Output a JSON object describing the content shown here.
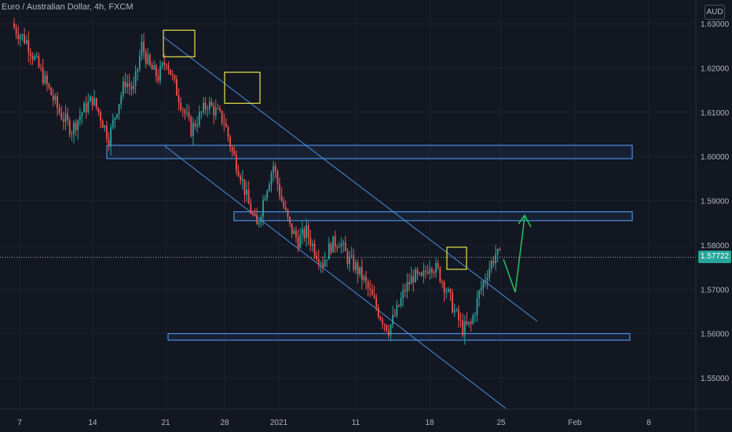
{
  "symbol_title": "Euro / Australian Dollar, 4h, FXCM",
  "currency_badge": "AUD",
  "last_price_label": "1.57722",
  "colors": {
    "background": "#131722",
    "up_candle": "#26a69a",
    "down_candle": "#ef5350",
    "channel_line": "#4a90e2",
    "zone_border": "#4a90e2",
    "highlight_box": "#e6e64a",
    "projection_arrow": "#22c55e",
    "axis_text": "#b2b5be",
    "price_line": "#9ca3af"
  },
  "chart_data": {
    "type": "candlestick",
    "title": "Euro / Australian Dollar, 4h, FXCM",
    "ylim": [
      1.545,
      1.632
    ],
    "y_ticks": [
      "1.63000",
      "1.62000",
      "1.61000",
      "1.60000",
      "1.59000",
      "1.58000",
      "1.57000",
      "1.56000",
      "1.55000"
    ],
    "x_ticks": [
      "7",
      "14",
      "21",
      "28",
      "2021",
      "11",
      "18",
      "25",
      "Feb",
      "8"
    ],
    "last_price": 1.57722,
    "close_path": [
      [
        0,
        1.629
      ],
      [
        6,
        1.626
      ],
      [
        12,
        1.62
      ],
      [
        18,
        1.614
      ],
      [
        22,
        1.61
      ],
      [
        28,
        1.606
      ],
      [
        33,
        1.61
      ],
      [
        38,
        1.613
      ],
      [
        42,
        1.609
      ],
      [
        46,
        1.604
      ],
      [
        50,
        1.611
      ],
      [
        54,
        1.617
      ],
      [
        58,
        1.615
      ],
      [
        62,
        1.625
      ],
      [
        66,
        1.62
      ],
      [
        70,
        1.618
      ],
      [
        74,
        1.622
      ],
      [
        78,
        1.616
      ],
      [
        82,
        1.611
      ],
      [
        86,
        1.606
      ],
      [
        90,
        1.609
      ],
      [
        94,
        1.612
      ],
      [
        98,
        1.61
      ],
      [
        102,
        1.608
      ],
      [
        106,
        1.601
      ],
      [
        110,
        1.596
      ],
      [
        114,
        1.589
      ],
      [
        118,
        1.584
      ],
      [
        122,
        1.592
      ],
      [
        126,
        1.598
      ],
      [
        130,
        1.59
      ],
      [
        134,
        1.584
      ],
      [
        138,
        1.581
      ],
      [
        142,
        1.583
      ],
      [
        146,
        1.579
      ],
      [
        150,
        1.576
      ],
      [
        154,
        1.58
      ],
      [
        158,
        1.581
      ],
      [
        162,
        1.577
      ],
      [
        166,
        1.575
      ],
      [
        170,
        1.572
      ],
      [
        174,
        1.568
      ],
      [
        178,
        1.564
      ],
      [
        182,
        1.561
      ],
      [
        186,
        1.565
      ],
      [
        190,
        1.57
      ],
      [
        194,
        1.573
      ],
      [
        198,
        1.572
      ],
      [
        202,
        1.576
      ],
      [
        206,
        1.574
      ],
      [
        210,
        1.57
      ],
      [
        214,
        1.565
      ],
      [
        218,
        1.561
      ],
      [
        222,
        1.562
      ],
      [
        226,
        1.569
      ],
      [
        230,
        1.574
      ],
      [
        234,
        1.578
      ],
      [
        236,
        1.5772
      ]
    ],
    "channel": {
      "upper": [
        [
          0,
          1.6265
        ],
        [
          240,
          1.5625
        ]
      ],
      "lower": [
        [
          -20,
          1.604
        ],
        [
          240,
          1.544
        ]
      ]
    },
    "zones": [
      {
        "y_low": 1.5995,
        "y_high": 1.6025
      },
      {
        "y_low": 1.5855,
        "y_high": 1.5875
      },
      {
        "y_low": 1.5585,
        "y_high": 1.56
      }
    ],
    "highlight_boxes": [
      {
        "y_low": 1.6225,
        "y_high": 1.6285
      },
      {
        "y_low": 1.612,
        "y_high": 1.619
      },
      {
        "y_low": 1.5745,
        "y_high": 1.5795
      }
    ],
    "projection": [
      [
        236,
        1.5772
      ],
      [
        240,
        1.5695
      ],
      [
        248,
        1.587
      ]
    ]
  }
}
